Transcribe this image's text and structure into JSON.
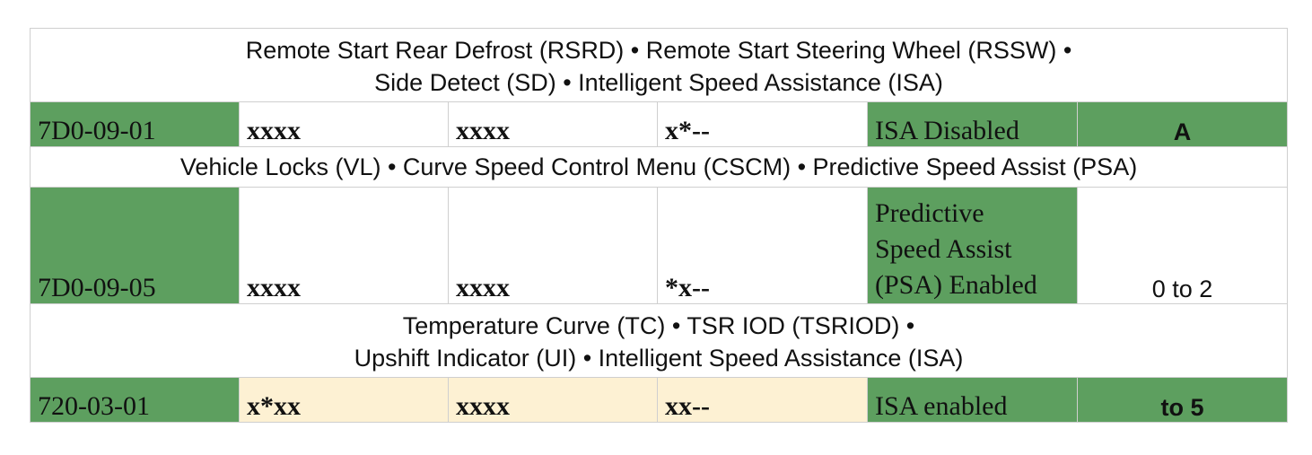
{
  "sections": [
    {
      "header_lines": [
        "Remote Start Rear Defrost (RSRD) • Remote Start Steering Wheel (RSSW) •",
        "Side Detect (SD) • Intelligent Speed Assistance (ISA)"
      ],
      "row": {
        "address": "7D0-09-01",
        "byte1": "xxxx",
        "byte2": "xxxx",
        "byte3": "x*--",
        "setting": "ISA Disabled",
        "value": "A"
      }
    },
    {
      "header_lines": [
        "Vehicle Locks (VL) • Curve Speed Control Menu (CSCM) • Predictive Speed Assist (PSA)"
      ],
      "row": {
        "address": "7D0-09-05",
        "byte1": "xxxx",
        "byte2": "xxxx",
        "byte3": "*x--",
        "setting_lines": [
          "Predictive",
          "Speed Assist",
          "(PSA) Enabled"
        ],
        "value": "0 to 2"
      }
    },
    {
      "header_lines": [
        "Temperature Curve (TC) • TSR IOD (TSRIOD) •",
        "Upshift Indicator (UI) • Intelligent Speed Assistance (ISA)"
      ],
      "row": {
        "address": "720-03-01",
        "byte1": "x*xx",
        "byte2": "xxxx",
        "byte3": "xx--",
        "setting": "ISA enabled",
        "value": "to 5"
      }
    }
  ],
  "colors": {
    "green": "#5d9f5f",
    "cream": "#fdf1d3",
    "white": "#ffffff",
    "border": "#cfcfcf"
  }
}
